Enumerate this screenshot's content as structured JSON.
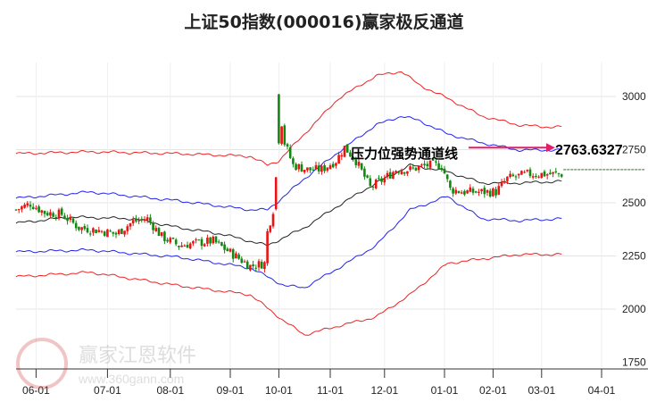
{
  "title": "上证50指数(000016)赢家极反通道",
  "annotation": {
    "label": "压力位强势通道线",
    "value": "2763.6327",
    "arrow_color": "#e0206a"
  },
  "watermark": {
    "name": "赢家江恩软件",
    "url": "www.360gann.com"
  },
  "chart_data": {
    "type": "candlestick-with-bands",
    "title": "上证50指数(000016)赢家极反通道",
    "y_ticks": [
      3000,
      2750,
      2500,
      2250,
      2000,
      1750
    ],
    "ylim": [
      1725,
      3150
    ],
    "x_axis_unit": "trading-day index",
    "xlim": [
      0,
      210
    ],
    "x_ticks": [
      {
        "label": "06-01",
        "t": 7
      },
      {
        "label": "07-01",
        "t": 32
      },
      {
        "label": "08-01",
        "t": 54
      },
      {
        "label": "09-01",
        "t": 75
      },
      {
        "label": "10-01",
        "t": 92
      },
      {
        "label": "11-01",
        "t": 110
      },
      {
        "label": "12-01",
        "t": 129
      },
      {
        "label": "01-01",
        "t": 150
      },
      {
        "label": "02-01",
        "t": 167
      },
      {
        "label": "03-01",
        "t": 184
      },
      {
        "label": "04-01",
        "t": 205
      }
    ],
    "close_path": [
      [
        0,
        2467
      ],
      [
        5,
        2496
      ],
      [
        10,
        2454
      ],
      [
        16,
        2446
      ],
      [
        22,
        2383
      ],
      [
        29,
        2370
      ],
      [
        35,
        2353
      ],
      [
        41,
        2412
      ],
      [
        46,
        2425
      ],
      [
        51,
        2341
      ],
      [
        57,
        2299
      ],
      [
        63,
        2311
      ],
      [
        69,
        2320
      ],
      [
        76,
        2257
      ],
      [
        82,
        2202
      ],
      [
        87,
        2215
      ],
      [
        88,
        2362
      ],
      [
        90,
        2467
      ],
      [
        92,
        2971
      ],
      [
        94,
        2782
      ],
      [
        97,
        2677
      ],
      [
        102,
        2656
      ],
      [
        107,
        2656
      ],
      [
        112,
        2698
      ],
      [
        115,
        2761
      ],
      [
        119,
        2698
      ],
      [
        124,
        2572
      ],
      [
        129,
        2614
      ],
      [
        133,
        2656
      ],
      [
        138,
        2656
      ],
      [
        144,
        2677
      ],
      [
        149,
        2677
      ],
      [
        152,
        2563
      ],
      [
        157,
        2551
      ],
      [
        163,
        2551
      ],
      [
        168,
        2551
      ],
      [
        172,
        2614
      ],
      [
        179,
        2635
      ],
      [
        185,
        2635
      ],
      [
        191,
        2635
      ]
    ],
    "series": [
      {
        "name": "upper-outer",
        "color": "#ee2222",
        "points": [
          [
            0,
            2731
          ],
          [
            26,
            2740
          ],
          [
            57,
            2731
          ],
          [
            82,
            2719
          ],
          [
            88,
            2677
          ],
          [
            92,
            2698
          ],
          [
            101,
            2824
          ],
          [
            113,
            2992
          ],
          [
            126,
            3097
          ],
          [
            135,
            3118
          ],
          [
            141,
            3055
          ],
          [
            151,
            2992
          ],
          [
            163,
            2908
          ],
          [
            176,
            2866
          ],
          [
            185,
            2857
          ],
          [
            191,
            2857
          ]
        ]
      },
      {
        "name": "upper-inner",
        "color": "#2222ee",
        "points": [
          [
            0,
            2521
          ],
          [
            26,
            2551
          ],
          [
            57,
            2509
          ],
          [
            82,
            2467
          ],
          [
            88,
            2467
          ],
          [
            92,
            2509
          ],
          [
            101,
            2614
          ],
          [
            113,
            2740
          ],
          [
            126,
            2866
          ],
          [
            135,
            2908
          ],
          [
            141,
            2887
          ],
          [
            151,
            2824
          ],
          [
            163,
            2782
          ],
          [
            176,
            2748
          ],
          [
            191,
            2748
          ]
        ]
      },
      {
        "name": "middle",
        "color": "#222222",
        "points": [
          [
            0,
            2404
          ],
          [
            19,
            2433
          ],
          [
            41,
            2425
          ],
          [
            57,
            2383
          ],
          [
            72,
            2353
          ],
          [
            88,
            2299
          ],
          [
            101,
            2383
          ],
          [
            113,
            2488
          ],
          [
            126,
            2593
          ],
          [
            138,
            2677
          ],
          [
            151,
            2647
          ],
          [
            163,
            2593
          ],
          [
            176,
            2593
          ],
          [
            191,
            2601
          ]
        ]
      },
      {
        "name": "lower-inner",
        "color": "#2222ee",
        "points": [
          [
            0,
            2269
          ],
          [
            26,
            2278
          ],
          [
            57,
            2244
          ],
          [
            82,
            2194
          ],
          [
            94,
            2110
          ],
          [
            101,
            2101
          ],
          [
            113,
            2194
          ],
          [
            126,
            2299
          ],
          [
            138,
            2467
          ],
          [
            151,
            2530
          ],
          [
            163,
            2425
          ],
          [
            176,
            2416
          ],
          [
            191,
            2425
          ]
        ]
      },
      {
        "name": "lower-outer",
        "color": "#ee2222",
        "points": [
          [
            0,
            2152
          ],
          [
            26,
            2173
          ],
          [
            57,
            2110
          ],
          [
            82,
            2068
          ],
          [
            94,
            1942
          ],
          [
            101,
            1879
          ],
          [
            113,
            1921
          ],
          [
            126,
            1963
          ],
          [
            138,
            2068
          ],
          [
            151,
            2215
          ],
          [
            163,
            2236
          ],
          [
            176,
            2257
          ],
          [
            191,
            2257
          ]
        ]
      }
    ],
    "resistance_level": 2763.6327,
    "support_dashed_level": 2656,
    "up_color": "#ee1111",
    "down_color": "#118811"
  }
}
